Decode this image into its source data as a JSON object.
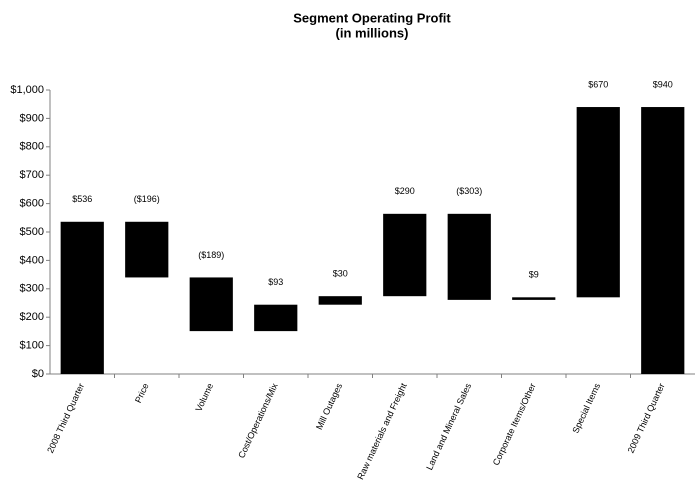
{
  "chart_data": {
    "type": "waterfall",
    "title": "Segment Operating Profit",
    "subtitle": "(in millions)",
    "categories": [
      "2008 Third Quarter",
      "Price",
      "Volume",
      "Cost/Operations/Mix",
      "Mill Outages",
      "Raw materials and Freight",
      "Land and Mineral Sales",
      "Corporate Items/Other",
      "Special Items",
      "2009 Third Quarter"
    ],
    "values": [
      536,
      -196,
      -189,
      93,
      30,
      290,
      -303,
      9,
      670,
      940
    ],
    "value_labels": [
      "$536",
      "($196)",
      "($189)",
      "$93",
      "$30",
      "$290",
      "($303)",
      "$9",
      "$670",
      "$940"
    ],
    "is_total": [
      true,
      false,
      false,
      false,
      false,
      false,
      false,
      false,
      false,
      true
    ],
    "color": "#000000",
    "ylim": [
      0,
      1000
    ],
    "yticks": [
      {
        "value": 0,
        "label": "$0"
      },
      {
        "value": 100,
        "label": "$100"
      },
      {
        "value": 200,
        "label": "$200"
      },
      {
        "value": 300,
        "label": "$300"
      },
      {
        "value": 400,
        "label": "$400"
      },
      {
        "value": 500,
        "label": "$500"
      },
      {
        "value": 600,
        "label": "$600"
      },
      {
        "value": 700,
        "label": "$700"
      },
      {
        "value": 800,
        "label": "$800"
      },
      {
        "value": 900,
        "label": "$900"
      },
      {
        "value": 1000,
        "label": "$1,000"
      }
    ],
    "grid": false
  }
}
